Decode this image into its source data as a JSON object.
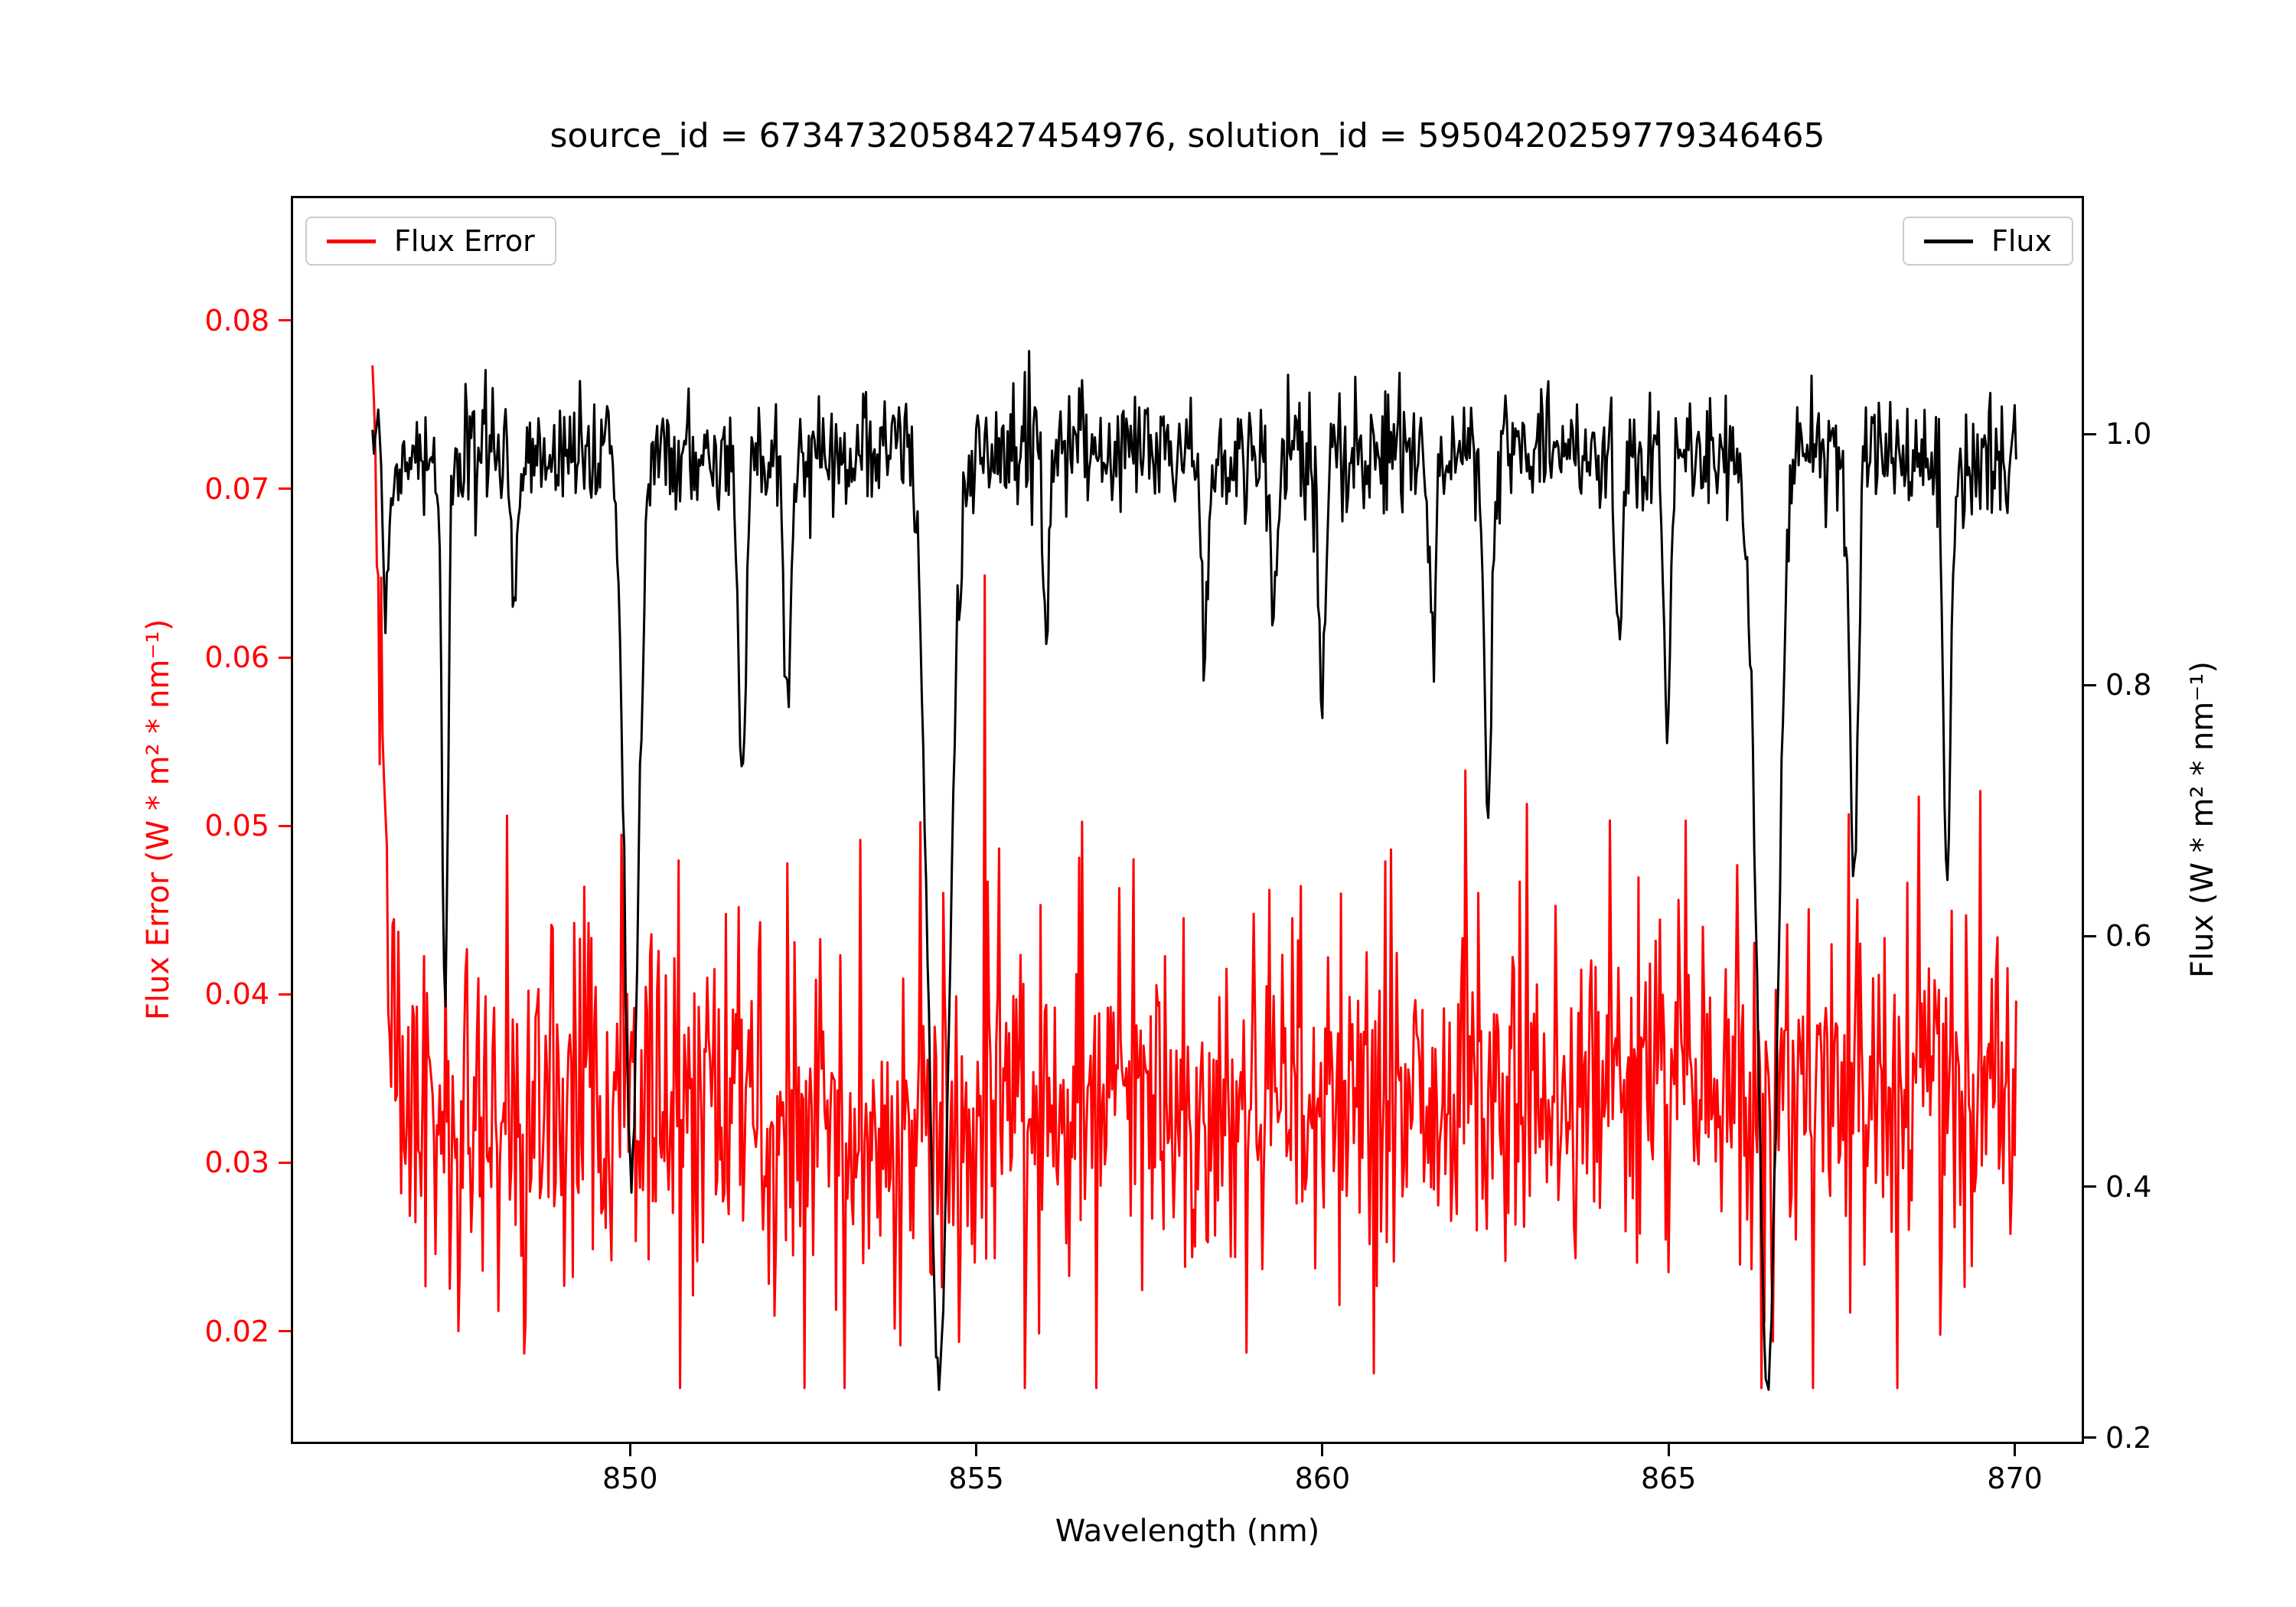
{
  "chart_data": {
    "type": "line",
    "title": "source_id = 6734732058427454976, solution_id = 5950420259779346465",
    "xlabel": "Wavelength (nm)",
    "grid": false,
    "x_axis": {
      "color": "#000000",
      "ticks": [
        "850",
        "855",
        "860",
        "865",
        "870"
      ],
      "range": [
        845.1,
        871.0
      ]
    },
    "left_axis": {
      "label": "Flux Error (W * m² * nm⁻¹)",
      "color": "#ff0000",
      "ticks": [
        "0.02",
        "0.03",
        "0.04",
        "0.05",
        "0.06",
        "0.07",
        "0.08"
      ],
      "range": [
        0.0133,
        0.0874
      ]
    },
    "right_axis": {
      "label": "Flux (W * m² * nm⁻¹)",
      "color": "#000000",
      "ticks": [
        "0.2",
        "0.4",
        "0.6",
        "0.8",
        "1.0"
      ],
      "range": [
        0.195,
        1.19
      ]
    },
    "legend": [
      {
        "label": "Flux Error",
        "color": "#ff0000",
        "position": "upper-left"
      },
      {
        "label": "Flux",
        "color": "#000000",
        "position": "upper-right"
      }
    ],
    "series": [
      {
        "name": "Flux Error",
        "axis": "left",
        "color": "#ff0000",
        "seed": 11,
        "x_start": 846.25,
        "x_end": 870.05,
        "n_points": 1150,
        "baseline": 0.0315,
        "baseline_end": 0.0345,
        "noise": 0.0045,
        "spike_prob": 0.25,
        "spike_amp": 0.012,
        "spike_pos_frac": 0.62,
        "edge_spike": {
          "amp": 0.051,
          "decay": 0.16
        },
        "clamp_min": 0.0165,
        "clamp_max": 0.0862
      },
      {
        "name": "Flux",
        "axis": "right",
        "color": "#000000",
        "seed": 3,
        "x_start": 846.25,
        "x_end": 870.05,
        "n_points": 1150,
        "baseline": 0.985,
        "noise": 0.024,
        "spike_prob": 0.1,
        "spike_amp": 0.03,
        "spike_pos_frac": 0.3,
        "noise_scales_with_level": true,
        "clamp_min": 0.205,
        "clamp_max": 1.1,
        "absorption_lines": [
          {
            "center": 846.45,
            "depth": 0.12,
            "width": 0.04
          },
          {
            "center": 847.3,
            "depth": 0.43,
            "width": 0.045
          },
          {
            "center": 848.3,
            "depth": 0.12,
            "width": 0.04
          },
          {
            "center": 850.0,
            "depth": 0.575,
            "width": 0.1
          },
          {
            "center": 851.6,
            "depth": 0.27,
            "width": 0.055
          },
          {
            "center": 852.25,
            "depth": 0.21,
            "width": 0.05
          },
          {
            "center": 854.45,
            "depth": 0.735,
            "width": 0.15
          },
          {
            "center": 856.0,
            "depth": 0.12,
            "width": 0.045
          },
          {
            "center": 858.3,
            "depth": 0.17,
            "width": 0.05
          },
          {
            "center": 859.3,
            "depth": 0.13,
            "width": 0.045
          },
          {
            "center": 860.0,
            "depth": 0.2,
            "width": 0.05
          },
          {
            "center": 861.6,
            "depth": 0.15,
            "width": 0.045
          },
          {
            "center": 862.4,
            "depth": 0.29,
            "width": 0.055
          },
          {
            "center": 864.3,
            "depth": 0.15,
            "width": 0.045
          },
          {
            "center": 865.0,
            "depth": 0.23,
            "width": 0.05
          },
          {
            "center": 866.45,
            "depth": 0.75,
            "width": 0.14
          },
          {
            "center": 867.7,
            "depth": 0.35,
            "width": 0.055
          },
          {
            "center": 869.05,
            "depth": 0.33,
            "width": 0.055
          }
        ]
      }
    ]
  }
}
